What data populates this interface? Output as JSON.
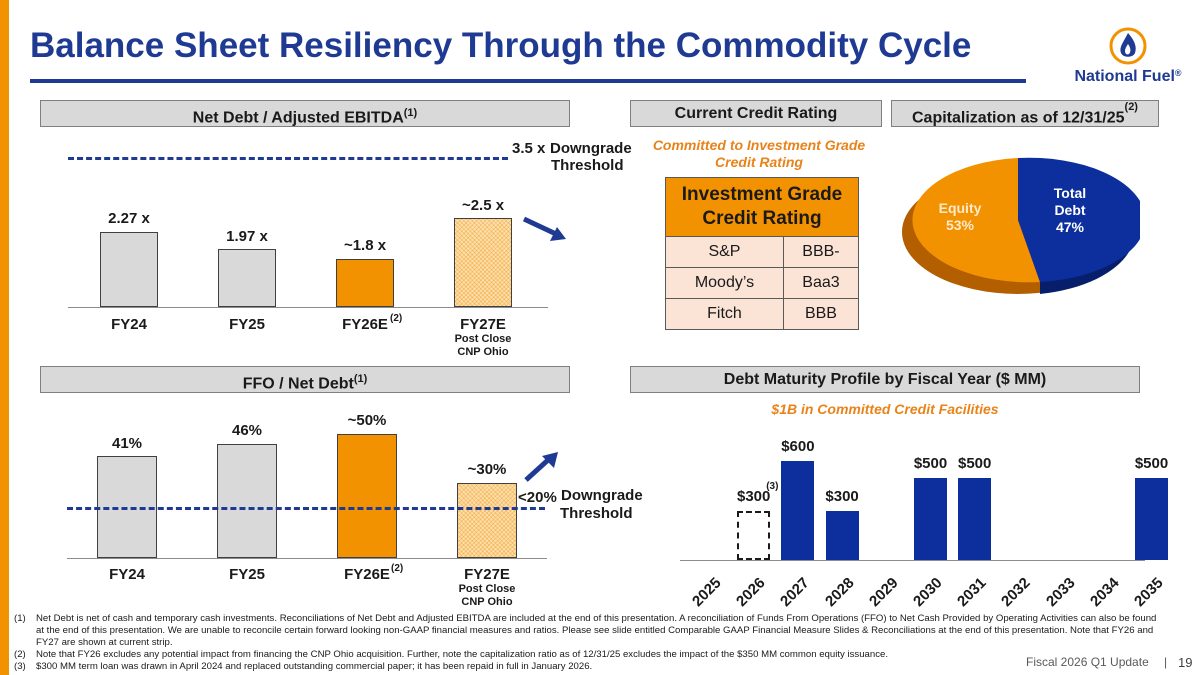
{
  "title": "Balance Sheet Resiliency Through the Commodity Cycle",
  "logo": {
    "name": "National Fuel",
    "reg": "®"
  },
  "net_debt": {
    "header": "Net Debt / Adjusted EBITDA",
    "header_sup": "(1)",
    "threshold_value": "3.5 x",
    "threshold_label_1": "Downgrade",
    "threshold_label_2": "Threshold",
    "bars": [
      {
        "category": "FY24",
        "value_label": "2.27 x",
        "value": 2.27
      },
      {
        "category": "FY25",
        "value_label": "1.97 x",
        "value": 1.97
      },
      {
        "category": "FY26E",
        "sup": "(2)",
        "value_label": "~1.8 x",
        "value": 1.8
      },
      {
        "category": "FY27E",
        "sub1": "Post Close",
        "sub2": "CNP Ohio",
        "value_label": "~2.5 x",
        "value": 2.5
      }
    ]
  },
  "ffo": {
    "header": "FFO / Net Debt",
    "header_sup": "(1)",
    "threshold_value": "<20%",
    "threshold_label_1": "Downgrade",
    "threshold_label_2": "Threshold",
    "bars": [
      {
        "category": "FY24",
        "value_label": "41%",
        "value": 41
      },
      {
        "category": "FY25",
        "value_label": "46%",
        "value": 46
      },
      {
        "category": "FY26E",
        "sup": "(2)",
        "value_label": "~50%",
        "value": 50
      },
      {
        "category": "FY27E",
        "sub1": "Post Close",
        "sub2": "CNP Ohio",
        "value_label": "~30%",
        "value": 30
      }
    ]
  },
  "credit": {
    "header": "Current Credit Rating",
    "subtitle": "Committed to Investment Grade Credit Rating",
    "table_header": "Investment Grade Credit Rating",
    "rows": [
      {
        "agency": "S&P",
        "rating": "BBB-"
      },
      {
        "agency": "Moody’s",
        "rating": "Baa3"
      },
      {
        "agency": "Fitch",
        "rating": "BBB"
      }
    ]
  },
  "capitalization": {
    "header": "Capitalization as of 12/31/25",
    "header_sup": "(2)",
    "equity_label": "Equity",
    "equity_pct": "53%",
    "equity_value": 53,
    "debt_label_1": "Total",
    "debt_label_2": "Debt",
    "debt_pct": "47%",
    "debt_value": 47,
    "equity_color": "#f39200",
    "debt_color": "#0d2f9e"
  },
  "maturity": {
    "header": "Debt Maturity Profile by Fiscal Year ($ MM)",
    "subtitle": "$1B in Committed Credit Facilities",
    "years": [
      "2025",
      "2026",
      "2027",
      "2028",
      "2029",
      "2030",
      "2031",
      "2032",
      "2033",
      "2034",
      "2035"
    ],
    "values": [
      0,
      300,
      600,
      300,
      0,
      500,
      500,
      0,
      0,
      0,
      500
    ],
    "labels": [
      "",
      "$300",
      "$600",
      "$300",
      "",
      "$500",
      "$500",
      "",
      "",
      "",
      "$500"
    ],
    "dashed_index": 1,
    "dashed_sup": "(3)",
    "bar_color": "#0d2f9e"
  },
  "footnotes": [
    {
      "num": "(1)",
      "text": "Net Debt is net of cash and temporary cash investments. Reconciliations of Net Debt and Adjusted EBITDA are included at the end of this presentation. A reconciliation of Funds From Operations (FFO) to Net Cash Provided by Operating Activities can also be found at the end of this presentation. We are unable to reconcile certain forward looking non-GAAP financial measures and ratios. Please see slide entitled Comparable GAAP Financial Measure Slides & Reconciliations at the end of this presentation. Note that FY26 and FY27 are shown at current strip."
    },
    {
      "num": "(2)",
      "text": "Note that FY26 excludes any potential impact from financing the CNP Ohio acquisition. Further, note the capitalization ratio as of 12/31/25 excludes the impact of the $350 MM common equity issuance."
    },
    {
      "num": "(3)",
      "text": "$300 MM term loan was drawn in April 2024 and replaced outstanding commercial paper; it has been repaid in full in January 2026."
    }
  ],
  "footer": {
    "label": "Fiscal 2026 Q1 Update",
    "separator": "|",
    "page": "19"
  }
}
